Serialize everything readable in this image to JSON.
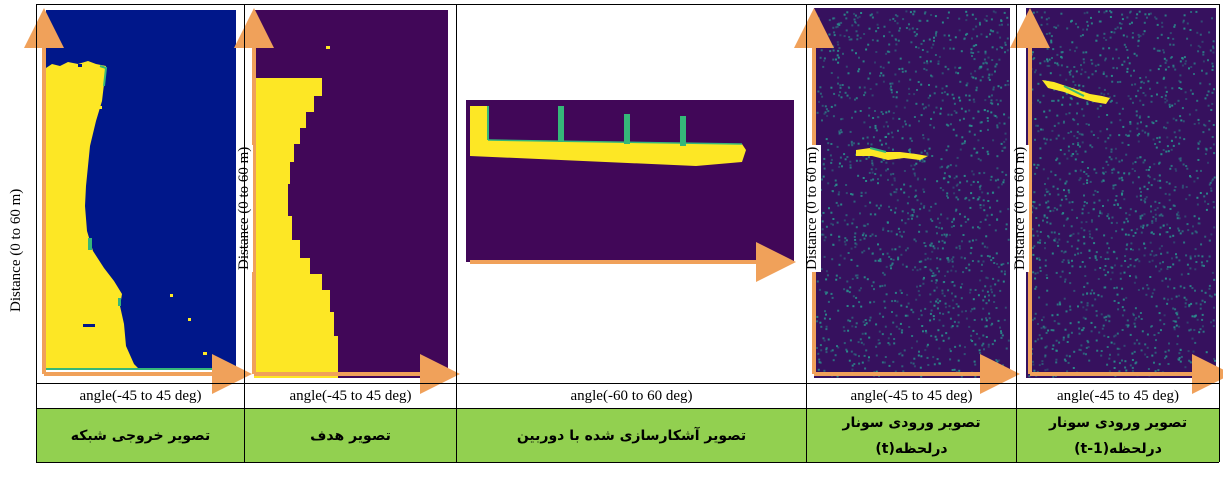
{
  "figure": {
    "panels": [
      {
        "id": "network-output",
        "y_axis_label": "Distance (0 to 60 m)",
        "x_axis_label": "angle(-45 to 45 deg)",
        "caption_lines": [
          "تصویر خروجی شبکه"
        ]
      },
      {
        "id": "target",
        "y_axis_label": "Distance (0 to 60 m)",
        "x_axis_label": "angle(-45 to 45 deg)",
        "caption_lines": [
          "تصویر هدف"
        ]
      },
      {
        "id": "camera-annotation",
        "y_axis_label": "",
        "x_axis_label": "angle(-60 to 60 deg)",
        "caption_lines": [
          "تصویر آشکارسازی شده با دوربین"
        ]
      },
      {
        "id": "sonar-t",
        "y_axis_label": "Distance (0 to 60 m)",
        "x_axis_label": "angle(-45 to 45 deg)",
        "caption_lines": [
          "تصویر ورودی سونار",
          "درلحظه(t)"
        ]
      },
      {
        "id": "sonar-t-1",
        "y_axis_label": "Distance (0 to 60 m)",
        "x_axis_label": "angle(-45 to 45 deg)",
        "caption_lines": [
          "تصویر ورودی سونار",
          "درلحظه(t-1)"
        ]
      }
    ],
    "colors": {
      "network_background": "#00178a",
      "target_background": "#410758",
      "foreground_yellow": "#fde725",
      "teal_edge": "#35b779",
      "sonar_background": "#36115e",
      "sonar_speckle": "#2a8c8c",
      "axis_arrow": "#f0a15a",
      "caption_background": "#92d050"
    }
  }
}
